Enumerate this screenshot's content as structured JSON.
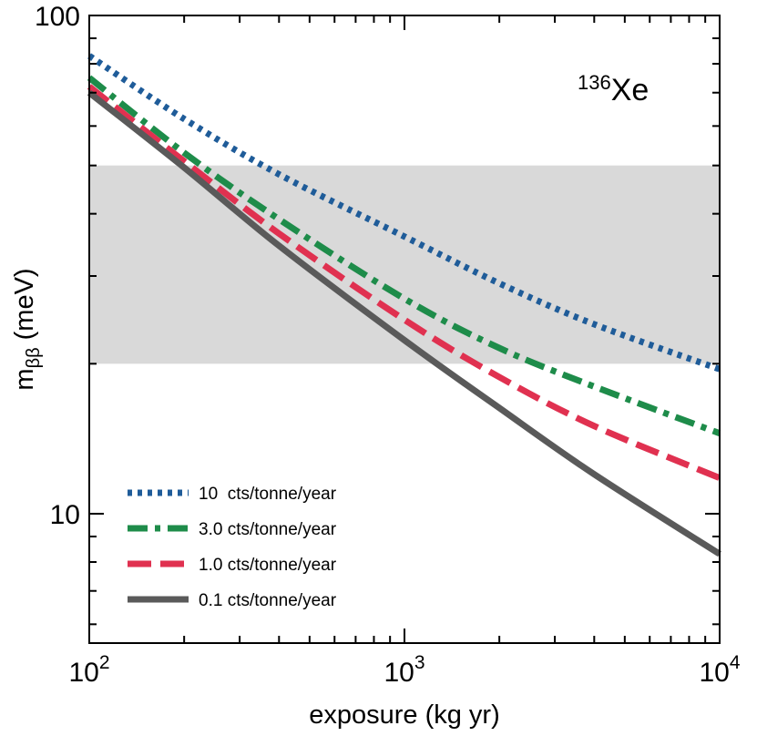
{
  "chart_data": {
    "type": "line",
    "x_scale": "log",
    "y_scale": "log",
    "xlim": [
      100,
      10000
    ],
    "ylim": [
      5.5,
      100
    ],
    "xlabel": "exposure (kg yr)",
    "ylabel": {
      "base": "m",
      "sub": "ββ",
      "rest": " (meV)"
    },
    "x_ticks": [
      {
        "value": 100,
        "base": "10",
        "exp": "2"
      },
      {
        "value": 1000,
        "base": "10",
        "exp": "3"
      },
      {
        "value": 10000,
        "base": "10",
        "exp": "4"
      }
    ],
    "y_ticks": [
      {
        "value": 10,
        "label": "10"
      },
      {
        "value": 100,
        "label": "100"
      }
    ],
    "annotation": {
      "sup": "136",
      "text": "Xe"
    },
    "band": {
      "y_min": 20,
      "y_max": 50,
      "color": "#d9d9d9"
    },
    "legend_position": "bottom-left",
    "series": [
      {
        "name": "10  cts/tonne/year",
        "color": "#1f5c99",
        "style": "dotted",
        "x": [
          100,
          200,
          400,
          1000,
          2000,
          4000,
          10000
        ],
        "y": [
          83,
          62,
          48,
          36,
          29,
          24,
          19.5
        ]
      },
      {
        "name": "3.0 cts/tonne/year",
        "color": "#1e8c4a",
        "style": "dashdot",
        "x": [
          100,
          200,
          400,
          1000,
          2000,
          4000,
          10000
        ],
        "y": [
          75,
          53,
          39,
          27,
          21.5,
          18,
          14.5
        ]
      },
      {
        "name": "1.0 cts/tonne/year",
        "color": "#e03150",
        "style": "dashed",
        "x": [
          100,
          200,
          400,
          1000,
          2000,
          4000,
          10000
        ],
        "y": [
          72,
          51,
          36.5,
          24.5,
          18.8,
          15,
          11.8
        ]
      },
      {
        "name": "0.1 cts/tonne/year",
        "color": "#5a5a5a",
        "style": "solid",
        "x": [
          100,
          200,
          400,
          1000,
          2000,
          4000,
          10000
        ],
        "y": [
          70,
          49.5,
          34.5,
          22.3,
          16.3,
          12,
          8.3
        ]
      }
    ]
  }
}
